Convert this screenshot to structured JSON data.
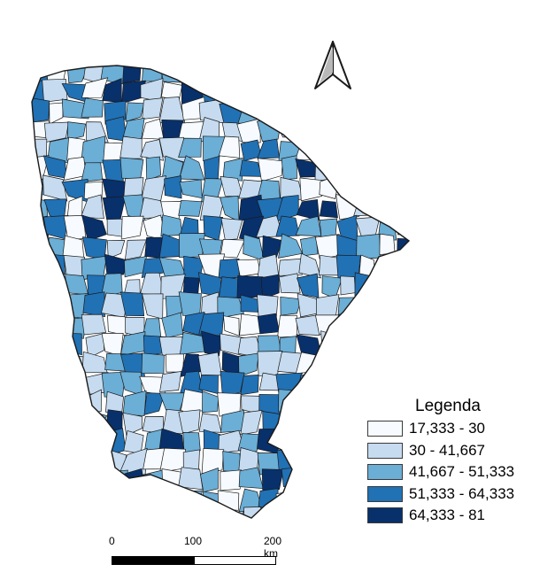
{
  "legend": {
    "title": "Legenda",
    "classes": [
      {
        "label": "17,333 - 30",
        "color": "#f7fbff"
      },
      {
        "label": "30 - 41,667",
        "color": "#c6dbef"
      },
      {
        "label": "41,667 - 51,333",
        "color": "#6baed6"
      },
      {
        "label": "51,333 - 64,333",
        "color": "#2171b5"
      },
      {
        "label": "64,333 - 81",
        "color": "#08306b"
      }
    ]
  },
  "scale_bar": {
    "ticks": [
      "0",
      "100",
      "200 km"
    ]
  },
  "north_arrow": {
    "icon": "north-arrow-icon"
  },
  "map": {
    "stroke_color": "#1a1a1a",
    "region": "municipalities choropleth"
  }
}
